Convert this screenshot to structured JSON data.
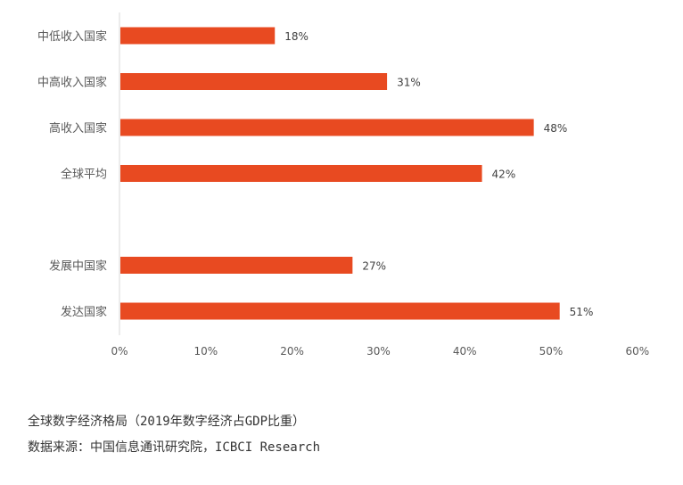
{
  "chart_data": {
    "type": "bar",
    "orientation": "horizontal",
    "categories": [
      "中低收入国家",
      "中高收入国家",
      "高收入国家",
      "全球平均",
      "",
      "发展中国家",
      "发达国家"
    ],
    "values": [
      18,
      31,
      48,
      42,
      null,
      27,
      51
    ],
    "value_labels": [
      "18%",
      "31%",
      "48%",
      "42%",
      "",
      "27%",
      "51%"
    ],
    "xlim": [
      0,
      60
    ],
    "x_ticks": [
      0,
      10,
      20,
      30,
      40,
      50,
      60
    ],
    "x_tick_labels": [
      "0%",
      "10%",
      "20%",
      "30%",
      "40%",
      "50%",
      "60%"
    ],
    "bar_color": "#E84A21",
    "grid": false,
    "legend": "none"
  },
  "caption": {
    "title": "全球数字经济格局（2019年数字经济占GDP比重）",
    "source": "数据来源：中国信息通讯研究院，ICBCI Research"
  }
}
